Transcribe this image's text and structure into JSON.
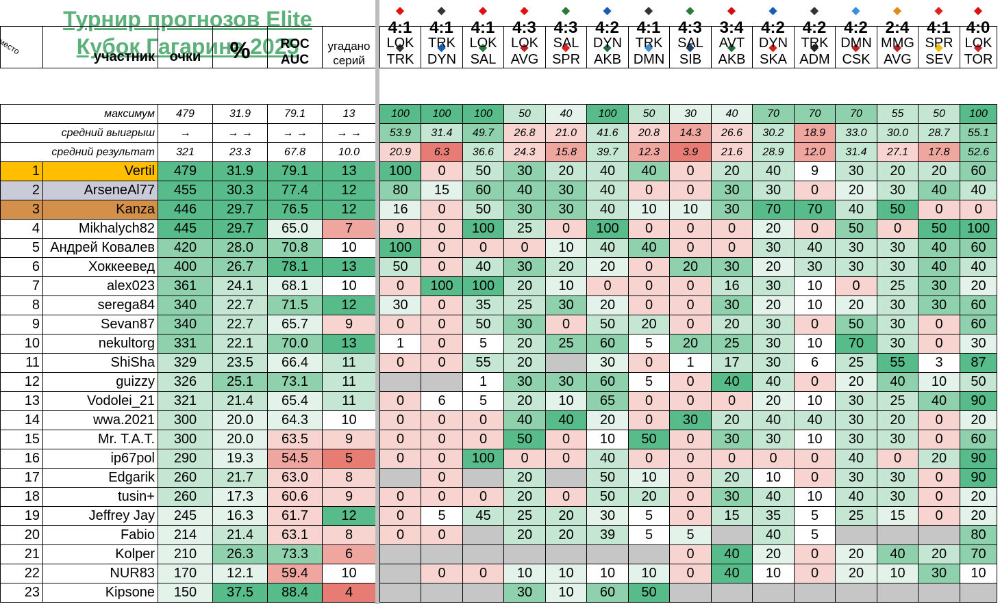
{
  "title": {
    "line1": "Турнир прогнозов Elite",
    "line2": "Кубок Гагарина 2025"
  },
  "headers": {
    "place": "место",
    "participant": "участник",
    "points": "очки",
    "percent": "%",
    "roc1": "ROC",
    "roc2": "AUC",
    "series1": "угадано",
    "series2": "серий"
  },
  "matches": [
    {
      "score": "4:1",
      "t1": "LOK",
      "t2": "TRK",
      "logo1": "loko-logo-icon",
      "logo2": "traktor-logo-icon"
    },
    {
      "score": "4:1",
      "t1": "TRK",
      "t2": "DYN",
      "logo1": "traktor-logo-icon",
      "logo2": "dynamo-logo-icon"
    },
    {
      "score": "4:1",
      "t1": "LOK",
      "t2": "SAL",
      "logo1": "loko-logo-icon",
      "logo2": "salavat-logo-icon"
    },
    {
      "score": "4:3",
      "t1": "LOK",
      "t2": "AVG",
      "logo1": "loko-logo-icon",
      "logo2": "avangard-logo-icon"
    },
    {
      "score": "4:3",
      "t1": "SAL",
      "t2": "SPR",
      "logo1": "salavat-logo-icon",
      "logo2": "spartak-logo-icon"
    },
    {
      "score": "4:2",
      "t1": "DYN",
      "t2": "AKB",
      "logo1": "dynamo-logo-icon",
      "logo2": "akbars-logo-icon"
    },
    {
      "score": "4:1",
      "t1": "TRK",
      "t2": "DMN",
      "logo1": "traktor-logo-icon",
      "logo2": "dinamo-minsk-logo-icon"
    },
    {
      "score": "4:3",
      "t1": "SAL",
      "t2": "SIB",
      "logo1": "salavat-logo-icon",
      "logo2": "sibir-logo-icon"
    },
    {
      "score": "3:4",
      "t1": "AVT",
      "t2": "AKB",
      "logo1": "avtomobilist-logo-icon",
      "logo2": "akbars-logo-icon"
    },
    {
      "score": "4:2",
      "t1": "DYN",
      "t2": "SKA",
      "logo1": "dynamo-logo-icon",
      "logo2": "ska-logo-icon"
    },
    {
      "score": "4:2",
      "t1": "TRK",
      "t2": "ADM",
      "logo1": "traktor-logo-icon",
      "logo2": "admiral-logo-icon"
    },
    {
      "score": "4:2",
      "t1": "DMN",
      "t2": "CSK",
      "logo1": "dinamo-minsk-logo-icon",
      "logo2": "cska-logo-icon"
    },
    {
      "score": "2:4",
      "t1": "MMG",
      "t2": "AVG",
      "logo1": "metallurg-logo-icon",
      "logo2": "avangard-logo-icon"
    },
    {
      "score": "4:1",
      "t1": "SPR",
      "t2": "SEV",
      "logo1": "spartak-logo-icon",
      "logo2": "severstal-logo-icon"
    },
    {
      "score": "4:0",
      "t1": "LOK",
      "t2": "TOR",
      "logo1": "loko-logo-icon",
      "logo2": "torpedo-logo-icon"
    }
  ],
  "stats": [
    {
      "label": "максимум",
      "points": "479",
      "pct": "31.9",
      "roc": "79.1",
      "series": "13",
      "m": [
        "100",
        "100",
        "100",
        "50",
        "40",
        "100",
        "50",
        "30",
        "40",
        "70",
        "70",
        "70",
        "55",
        "50",
        "100"
      ]
    },
    {
      "label": "средний выигрыш",
      "points": "→",
      "pct": "→ →",
      "roc": "→ →",
      "series": "→ →",
      "m": [
        "53.9",
        "31.4",
        "49.7",
        "26.8",
        "21.0",
        "41.6",
        "20.8",
        "14.3",
        "26.6",
        "30.2",
        "18.9",
        "33.0",
        "30.0",
        "28.7",
        "55.1"
      ]
    },
    {
      "label": "средний результат",
      "points": "321",
      "pct": "23.3",
      "roc": "67.8",
      "series": "10.0",
      "m": [
        "20.9",
        "6.3",
        "36.6",
        "24.3",
        "15.8",
        "39.7",
        "12.3",
        "3.9",
        "21.6",
        "28.9",
        "12.0",
        "31.4",
        "27.1",
        "17.8",
        "52.6"
      ]
    }
  ],
  "rows": [
    {
      "place": "1",
      "name": "Vertil",
      "points": "479",
      "pct": "31.9",
      "roc": "79.1",
      "series": "13",
      "m": [
        "100",
        "0",
        "50",
        "30",
        "20",
        "40",
        "40",
        "0",
        "20",
        "40",
        "9",
        "30",
        "20",
        "20",
        "60"
      ]
    },
    {
      "place": "2",
      "name": "ArseneAl77",
      "points": "455",
      "pct": "30.3",
      "roc": "77.4",
      "series": "12",
      "m": [
        "80",
        "15",
        "60",
        "40",
        "30",
        "40",
        "0",
        "0",
        "30",
        "30",
        "0",
        "20",
        "30",
        "40",
        "40"
      ]
    },
    {
      "place": "3",
      "name": "Kanza",
      "points": "446",
      "pct": "29.7",
      "roc": "76.5",
      "series": "12",
      "m": [
        "16",
        "0",
        "50",
        "30",
        "30",
        "40",
        "10",
        "10",
        "30",
        "70",
        "70",
        "40",
        "50",
        "0",
        "0"
      ]
    },
    {
      "place": "4",
      "name": "Mikhalych82",
      "points": "445",
      "pct": "29.7",
      "roc": "65.0",
      "series": "7",
      "m": [
        "0",
        "0",
        "100",
        "25",
        "0",
        "100",
        "0",
        "0",
        "0",
        "20",
        "0",
        "50",
        "0",
        "50",
        "100"
      ]
    },
    {
      "place": "5",
      "name": "Андрей Ковалев",
      "points": "420",
      "pct": "28.0",
      "roc": "70.8",
      "series": "10",
      "m": [
        "100",
        "0",
        "0",
        "0",
        "10",
        "40",
        "40",
        "0",
        "0",
        "30",
        "40",
        "30",
        "30",
        "40",
        "60"
      ]
    },
    {
      "place": "6",
      "name": "Хоккеевед",
      "points": "400",
      "pct": "26.7",
      "roc": "78.1",
      "series": "13",
      "m": [
        "50",
        "0",
        "40",
        "30",
        "20",
        "20",
        "0",
        "20",
        "30",
        "20",
        "30",
        "30",
        "30",
        "40",
        "40"
      ]
    },
    {
      "place": "7",
      "name": "alex023",
      "points": "361",
      "pct": "24.1",
      "roc": "68.1",
      "series": "10",
      "m": [
        "0",
        "100",
        "100",
        "20",
        "10",
        "0",
        "0",
        "0",
        "16",
        "30",
        "10",
        "0",
        "25",
        "30",
        "20"
      ]
    },
    {
      "place": "8",
      "name": "serega84",
      "points": "340",
      "pct": "22.7",
      "roc": "71.5",
      "series": "12",
      "m": [
        "30",
        "0",
        "35",
        "25",
        "30",
        "20",
        "0",
        "0",
        "30",
        "20",
        "10",
        "20",
        "30",
        "30",
        "60"
      ]
    },
    {
      "place": "9",
      "name": "Sevan87",
      "points": "340",
      "pct": "22.7",
      "roc": "65.7",
      "series": "9",
      "m": [
        "0",
        "0",
        "50",
        "30",
        "0",
        "50",
        "20",
        "0",
        "20",
        "30",
        "0",
        "50",
        "30",
        "0",
        "60"
      ]
    },
    {
      "place": "10",
      "name": "nekultorg",
      "points": "331",
      "pct": "22.1",
      "roc": "70.0",
      "series": "13",
      "m": [
        "1",
        "0",
        "5",
        "20",
        "25",
        "60",
        "5",
        "20",
        "25",
        "30",
        "10",
        "70",
        "30",
        "0",
        "30"
      ]
    },
    {
      "place": "11",
      "name": "ShiSha",
      "points": "329",
      "pct": "23.5",
      "roc": "66.4",
      "series": "11",
      "m": [
        "0",
        "0",
        "55",
        "20",
        "",
        "30",
        "0",
        "1",
        "17",
        "30",
        "6",
        "25",
        "55",
        "3",
        "87"
      ]
    },
    {
      "place": "12",
      "name": "guizzy",
      "points": "326",
      "pct": "25.1",
      "roc": "73.1",
      "series": "11",
      "m": [
        "",
        "",
        "1",
        "30",
        "30",
        "60",
        "5",
        "0",
        "40",
        "40",
        "0",
        "20",
        "40",
        "10",
        "50"
      ]
    },
    {
      "place": "13",
      "name": "Vodolei_21",
      "points": "321",
      "pct": "21.4",
      "roc": "65.4",
      "series": "11",
      "m": [
        "0",
        "6",
        "5",
        "20",
        "10",
        "65",
        "0",
        "0",
        "0",
        "20",
        "10",
        "30",
        "25",
        "40",
        "90"
      ]
    },
    {
      "place": "14",
      "name": "wwa.2021",
      "points": "300",
      "pct": "20.0",
      "roc": "64.3",
      "series": "10",
      "m": [
        "0",
        "0",
        "0",
        "40",
        "40",
        "20",
        "0",
        "30",
        "20",
        "40",
        "40",
        "30",
        "20",
        "0",
        "20"
      ]
    },
    {
      "place": "15",
      "name": "Mr. T.A.T.",
      "points": "300",
      "pct": "20.0",
      "roc": "63.5",
      "series": "9",
      "m": [
        "0",
        "0",
        "0",
        "50",
        "0",
        "10",
        "50",
        "0",
        "30",
        "30",
        "10",
        "30",
        "30",
        "0",
        "60"
      ]
    },
    {
      "place": "16",
      "name": "ip67pol",
      "points": "290",
      "pct": "19.3",
      "roc": "54.5",
      "series": "5",
      "m": [
        "0",
        "0",
        "100",
        "0",
        "0",
        "40",
        "0",
        "0",
        "0",
        "0",
        "0",
        "40",
        "0",
        "20",
        "90"
      ]
    },
    {
      "place": "17",
      "name": "Edgarik",
      "points": "260",
      "pct": "21.7",
      "roc": "63.0",
      "series": "8",
      "m": [
        "",
        "0",
        "",
        "20",
        "",
        "50",
        "10",
        "0",
        "20",
        "10",
        "0",
        "30",
        "30",
        "0",
        "90"
      ]
    },
    {
      "place": "18",
      "name": "tusin+",
      "points": "260",
      "pct": "17.3",
      "roc": "60.6",
      "series": "9",
      "m": [
        "0",
        "0",
        "0",
        "20",
        "0",
        "50",
        "20",
        "0",
        "30",
        "40",
        "10",
        "40",
        "30",
        "0",
        "20"
      ]
    },
    {
      "place": "19",
      "name": "Jeffrey Jay",
      "points": "245",
      "pct": "16.3",
      "roc": "61.7",
      "series": "12",
      "m": [
        "0",
        "5",
        "45",
        "25",
        "20",
        "30",
        "5",
        "0",
        "15",
        "35",
        "5",
        "25",
        "15",
        "0",
        "20"
      ]
    },
    {
      "place": "20",
      "name": "Fabio",
      "points": "214",
      "pct": "21.4",
      "roc": "63.1",
      "series": "8",
      "m": [
        "0",
        "0",
        "",
        "20",
        "20",
        "39",
        "5",
        "5",
        "",
        "40",
        "5",
        "",
        "",
        "",
        "80"
      ]
    },
    {
      "place": "21",
      "name": "Kolper",
      "points": "210",
      "pct": "26.3",
      "roc": "73.3",
      "series": "6",
      "m": [
        "",
        "",
        "",
        "",
        "",
        "",
        "",
        "0",
        "40",
        "20",
        "0",
        "20",
        "40",
        "20",
        "70"
      ]
    },
    {
      "place": "22",
      "name": "NUR83",
      "points": "170",
      "pct": "12.1",
      "roc": "59.4",
      "series": "10",
      "m": [
        "",
        "0",
        "0",
        "10",
        "10",
        "10",
        "10",
        "0",
        "40",
        "10",
        "0",
        "20",
        "10",
        "30",
        "10"
      ]
    },
    {
      "place": "23",
      "name": "Kipsone",
      "points": "150",
      "pct": "37.5",
      "roc": "88.4",
      "series": "4",
      "m": [
        "",
        "",
        "",
        "30",
        "10",
        "60",
        "50",
        "",
        "",
        "",
        "",
        "",
        "",
        "",
        ""
      ]
    }
  ],
  "colors": {
    "title": "#5cb07a",
    "gold": "#ffbf00",
    "silver": "#c9cbd8",
    "bronze": "#d3904a",
    "good": "#57bb8a",
    "bad": "#e67c73",
    "missing": "#c6c6c6"
  }
}
